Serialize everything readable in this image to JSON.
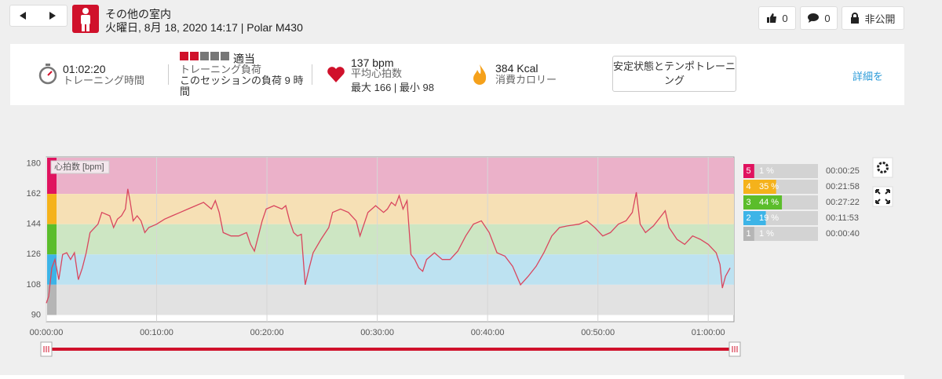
{
  "header": {
    "title": "その他の室内",
    "subtitle": "火曜日, 8月 18, 2020 14:17 | Polar M430",
    "likes": "0",
    "comments": "0",
    "privacy": "非公開"
  },
  "summary": {
    "duration": "01:02:20",
    "duration_label": "トレーニング時間",
    "load": "適当",
    "load_label": "トレーニング負荷",
    "load_detail": "このセッションの負荷 9 時間",
    "heart_rate": "137 bpm",
    "heart_rate_label": "平均心拍数",
    "heart_rate_detail": "最大 166 | 最小 98",
    "calories": "384 Kcal",
    "calories_label": "消費カロリー",
    "benefit_button": "安定状態とテンポトレーニング",
    "details_link": "詳細を"
  },
  "chart_data": {
    "type": "line",
    "ylabel": "心拍数 [bpm]",
    "color": "#d9465e",
    "xlim": [
      0,
      3740
    ],
    "ylim": [
      86,
      184
    ],
    "xticks": [
      {
        "value": 0,
        "label": "00:00:00"
      },
      {
        "value": 600,
        "label": "00:10:00"
      },
      {
        "value": 1200,
        "label": "00:20:00"
      },
      {
        "value": 1800,
        "label": "00:30:00"
      },
      {
        "value": 2400,
        "label": "00:40:00"
      },
      {
        "value": 3000,
        "label": "00:50:00"
      },
      {
        "value": 3600,
        "label": "01:00:00"
      }
    ],
    "yticks": [
      90,
      108,
      126,
      144,
      162,
      180
    ],
    "x": [
      0,
      13,
      30,
      47,
      68,
      89,
      111,
      132,
      153,
      174,
      196,
      217,
      238,
      281,
      302,
      345,
      366,
      387,
      409,
      430,
      443,
      455,
      472,
      494,
      515,
      536,
      557,
      600,
      643,
      685,
      728,
      770,
      813,
      855,
      898,
      919,
      940,
      962,
      1004,
      1047,
      1089,
      1111,
      1132,
      1153,
      1174,
      1196,
      1238,
      1281,
      1302,
      1323,
      1345,
      1366,
      1387,
      1408,
      1430,
      1451,
      1494,
      1536,
      1557,
      1600,
      1643,
      1685,
      1706,
      1728,
      1749,
      1791,
      1834,
      1855,
      1877,
      1898,
      1919,
      1940,
      1962,
      1983,
      2004,
      2026,
      2047,
      2068,
      2111,
      2153,
      2196,
      2238,
      2281,
      2323,
      2366,
      2409,
      2451,
      2494,
      2536,
      2579,
      2621,
      2664,
      2706,
      2749,
      2791,
      2834,
      2898,
      2940,
      2983,
      3026,
      3068,
      3111,
      3153,
      3187,
      3209,
      3230,
      3259,
      3302,
      3345,
      3366,
      3387,
      3430,
      3472,
      3515,
      3557,
      3600,
      3643,
      3664,
      3677,
      3694,
      3719
    ],
    "values": [
      97,
      101,
      118,
      123,
      111,
      126,
      127,
      123,
      127,
      111,
      118,
      127,
      139,
      144,
      151,
      149,
      142,
      147,
      149,
      153,
      165,
      158,
      146,
      149,
      146,
      139,
      142,
      144,
      147,
      149,
      151,
      153,
      155,
      157,
      153,
      158,
      151,
      139,
      137,
      137,
      139,
      132,
      128,
      137,
      146,
      153,
      155,
      153,
      155,
      146,
      139,
      137,
      138,
      108,
      118,
      127,
      135,
      142,
      151,
      153,
      151,
      146,
      137,
      144,
      151,
      155,
      151,
      153,
      157,
      155,
      161,
      153,
      158,
      126,
      123,
      118,
      116,
      123,
      127,
      123,
      123,
      128,
      137,
      144,
      146,
      139,
      127,
      125,
      119,
      108,
      113,
      119,
      127,
      137,
      142,
      143,
      144,
      146,
      142,
      137,
      139,
      144,
      146,
      151,
      163,
      144,
      139,
      143,
      149,
      152,
      142,
      135,
      132,
      137,
      135,
      132,
      127,
      120,
      106,
      113,
      118
    ],
    "zones": [
      {
        "name": "5",
        "color": "#e0135f",
        "band_color": "#ebb1c9",
        "range": [
          162,
          180
        ],
        "percent": 1,
        "percent_label": "1 %",
        "time": "00:00:25"
      },
      {
        "name": "4",
        "color": "#f5b21b",
        "band_color": "#f6e0b5",
        "range": [
          144,
          162
        ],
        "percent": 35,
        "percent_label": "35 %",
        "time": "00:21:58"
      },
      {
        "name": "3",
        "color": "#5bbd2b",
        "band_color": "#cde6c3",
        "range": [
          126,
          144
        ],
        "percent": 44,
        "percent_label": "44 %",
        "time": "00:27:22"
      },
      {
        "name": "2",
        "color": "#3db4e7",
        "band_color": "#bde2f1",
        "range": [
          108,
          126
        ],
        "percent": 19,
        "percent_label": "19 %",
        "time": "00:11:53"
      },
      {
        "name": "1",
        "color": "#b5b5b5",
        "band_color": "#e2e2e2",
        "range": [
          90,
          108
        ],
        "percent": 1,
        "percent_label": "1 %",
        "time": "00:00:40"
      }
    ],
    "percent_max": 100
  }
}
